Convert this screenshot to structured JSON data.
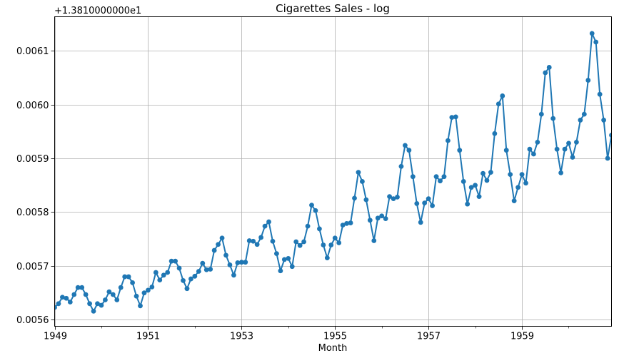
{
  "chart_data": {
    "type": "line",
    "title": "Cigarettes Sales - log",
    "xlabel": "Month",
    "ylabel": "",
    "offset_label": "+1.3810000000e1",
    "grid": true,
    "markers": true,
    "color": "#1f77b4",
    "x_start": "1949-01",
    "x_ticks": [
      "1949",
      "1951",
      "1953",
      "1955",
      "1957",
      "1959"
    ],
    "x_tick_years": [
      1949,
      1951,
      1953,
      1955,
      1957,
      1959
    ],
    "xlim": [
      "1949-01",
      "1960-12"
    ],
    "y_ticks": [
      "0.0056",
      "0.0057",
      "0.0058",
      "0.0059",
      "0.0060",
      "0.0061"
    ],
    "y_tick_values": [
      0.0056,
      0.0057,
      0.0058,
      0.0059,
      0.006,
      0.0061
    ],
    "ylim": [
      0.005588,
      0.006163
    ],
    "series": [
      {
        "values": [
          0.005623,
          0.00563,
          0.005642,
          0.00564,
          0.005633,
          0.005647,
          0.00566,
          0.00566,
          0.005647,
          0.00563,
          0.005616,
          0.00563,
          0.005627,
          0.005637,
          0.005652,
          0.005647,
          0.005637,
          0.00566,
          0.00568,
          0.00568,
          0.005669,
          0.005644,
          0.005626,
          0.00565,
          0.005655,
          0.005661,
          0.005688,
          0.005674,
          0.005683,
          0.005688,
          0.005709,
          0.005709,
          0.005696,
          0.005673,
          0.005658,
          0.005676,
          0.005681,
          0.00569,
          0.005705,
          0.005693,
          0.005694,
          0.005729,
          0.00574,
          0.005752,
          0.00572,
          0.005702,
          0.005683,
          0.005706,
          0.005707,
          0.005707,
          0.005747,
          0.005746,
          0.00574,
          0.005753,
          0.005774,
          0.005782,
          0.005746,
          0.005723,
          0.005691,
          0.005712,
          0.005714,
          0.005699,
          0.005745,
          0.005738,
          0.005745,
          0.005774,
          0.005813,
          0.005803,
          0.005769,
          0.005739,
          0.005715,
          0.005739,
          0.005752,
          0.005743,
          0.005776,
          0.005779,
          0.00578,
          0.005826,
          0.005874,
          0.005857,
          0.005823,
          0.005785,
          0.005747,
          0.005789,
          0.005793,
          0.005788,
          0.005829,
          0.005825,
          0.005828,
          0.005885,
          0.005924,
          0.005915,
          0.005866,
          0.005816,
          0.005781,
          0.005817,
          0.005825,
          0.005812,
          0.005866,
          0.005858,
          0.005866,
          0.005933,
          0.005976,
          0.005977,
          0.005915,
          0.005857,
          0.005815,
          0.005846,
          0.00585,
          0.005829,
          0.005872,
          0.005859,
          0.005874,
          0.005946,
          0.006001,
          0.006016,
          0.005915,
          0.00587,
          0.005821,
          0.005846,
          0.00587,
          0.005854,
          0.005917,
          0.005908,
          0.00593,
          0.005982,
          0.006059,
          0.006069,
          0.005974,
          0.005917,
          0.005873,
          0.005917,
          0.005928,
          0.005902,
          0.00593,
          0.005971,
          0.005982,
          0.006045,
          0.006132,
          0.006116,
          0.006019,
          0.005971,
          0.0059,
          0.005943
        ]
      }
    ]
  }
}
